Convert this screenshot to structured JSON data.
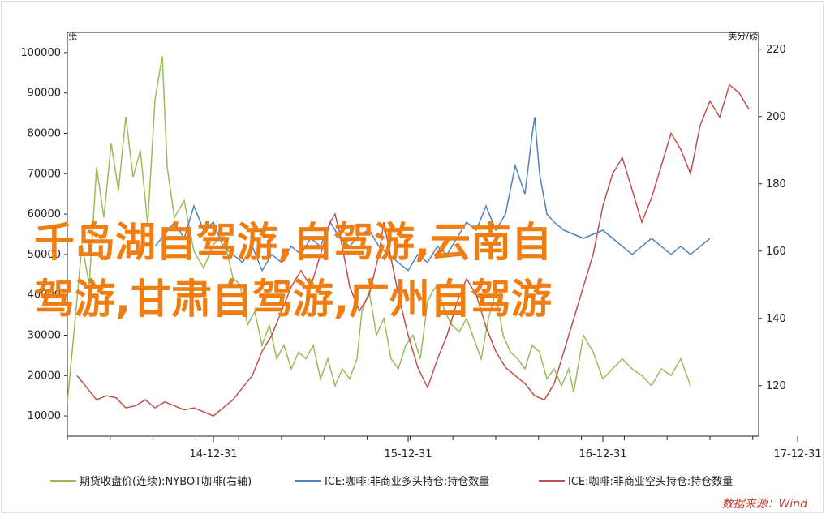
{
  "chart_data": {
    "type": "line",
    "title": "",
    "left_axis_unit": "张",
    "right_axis_unit": "美分/磅",
    "ylim_left": [
      5000,
      105000
    ],
    "ylim_right": [
      105,
      225
    ],
    "y_ticks_left": [
      "100000",
      "90000",
      "80000",
      "70000",
      "60000",
      "50000",
      "40000",
      "30000",
      "20000",
      "10000"
    ],
    "y_ticks_right": [
      "220",
      "200",
      "180",
      "160",
      "140",
      "120"
    ],
    "x_ticks": [
      "14-12-31",
      "15-12-31",
      "16-12-31",
      "17-12-31"
    ],
    "series": [
      {
        "name": "期货收盘价(连续):NYBOT咖啡(右轴)",
        "axis": "right",
        "color": "#9bbb59",
        "points": [
          [
            0,
            115
          ],
          [
            0.15,
            138
          ],
          [
            0.3,
            162
          ],
          [
            0.45,
            150
          ],
          [
            0.6,
            185
          ],
          [
            0.75,
            170
          ],
          [
            0.9,
            192
          ],
          [
            1.05,
            178
          ],
          [
            1.2,
            200
          ],
          [
            1.35,
            182
          ],
          [
            1.5,
            190
          ],
          [
            1.65,
            168
          ],
          [
            1.8,
            205
          ],
          [
            1.95,
            218
          ],
          [
            2.05,
            185
          ],
          [
            2.2,
            170
          ],
          [
            2.4,
            175
          ],
          [
            2.6,
            160
          ],
          [
            2.8,
            155
          ],
          [
            3.0,
            162
          ],
          [
            3.2,
            165
          ],
          [
            3.4,
            152
          ],
          [
            3.55,
            150
          ],
          [
            3.7,
            138
          ],
          [
            3.85,
            142
          ],
          [
            4.0,
            132
          ],
          [
            4.15,
            138
          ],
          [
            4.3,
            128
          ],
          [
            4.45,
            132
          ],
          [
            4.6,
            125
          ],
          [
            4.75,
            130
          ],
          [
            4.9,
            128
          ],
          [
            5.05,
            132
          ],
          [
            5.2,
            122
          ],
          [
            5.35,
            128
          ],
          [
            5.5,
            120
          ],
          [
            5.65,
            125
          ],
          [
            5.8,
            122
          ],
          [
            5.95,
            128
          ],
          [
            6.05,
            142
          ],
          [
            6.2,
            148
          ],
          [
            6.35,
            135
          ],
          [
            6.5,
            140
          ],
          [
            6.65,
            128
          ],
          [
            6.8,
            125
          ],
          [
            6.95,
            132
          ],
          [
            7.1,
            135
          ],
          [
            7.25,
            128
          ],
          [
            7.4,
            145
          ],
          [
            7.5,
            148
          ],
          [
            7.6,
            150
          ],
          [
            7.75,
            142
          ],
          [
            7.9,
            138
          ],
          [
            8.05,
            136
          ],
          [
            8.2,
            140
          ],
          [
            8.35,
            134
          ],
          [
            8.5,
            128
          ],
          [
            8.65,
            140
          ],
          [
            8.8,
            148
          ],
          [
            8.95,
            135
          ],
          [
            9.1,
            130
          ],
          [
            9.25,
            128
          ],
          [
            9.4,
            125
          ],
          [
            9.55,
            132
          ],
          [
            9.7,
            130
          ],
          [
            9.85,
            122
          ],
          [
            10.0,
            125
          ],
          [
            10.15,
            120
          ],
          [
            10.3,
            125
          ],
          [
            10.4,
            118
          ],
          [
            10.6,
            135
          ],
          [
            10.8,
            130
          ],
          [
            11.0,
            122
          ],
          [
            11.2,
            125
          ],
          [
            11.4,
            128
          ],
          [
            11.6,
            125
          ],
          [
            11.8,
            123
          ],
          [
            12.0,
            120
          ],
          [
            12.2,
            125
          ],
          [
            12.4,
            123
          ],
          [
            12.6,
            128
          ],
          [
            12.8,
            120
          ]
        ]
      },
      {
        "name": "ICE:咖啡:非商业多头持仓:持仓数量",
        "axis": "left",
        "color": "#4f81bd",
        "points": [
          [
            1.8,
            52000
          ],
          [
            2.0,
            55000
          ],
          [
            2.2,
            58000
          ],
          [
            2.4,
            54000
          ],
          [
            2.6,
            62000
          ],
          [
            2.8,
            56000
          ],
          [
            3.0,
            58000
          ],
          [
            3.2,
            52000
          ],
          [
            3.4,
            50000
          ],
          [
            3.6,
            48000
          ],
          [
            3.8,
            52000
          ],
          [
            4.0,
            46000
          ],
          [
            4.2,
            50000
          ],
          [
            4.4,
            48000
          ],
          [
            4.6,
            52000
          ],
          [
            4.8,
            50000
          ],
          [
            5.0,
            54000
          ],
          [
            5.2,
            52000
          ],
          [
            5.4,
            58000
          ],
          [
            5.6,
            54000
          ],
          [
            5.8,
            52000
          ],
          [
            6.0,
            55000
          ],
          [
            6.2,
            56000
          ],
          [
            6.4,
            52000
          ],
          [
            6.6,
            50000
          ],
          [
            6.8,
            48000
          ],
          [
            7.0,
            46000
          ],
          [
            7.2,
            50000
          ],
          [
            7.4,
            48000
          ],
          [
            7.6,
            52000
          ],
          [
            7.8,
            50000
          ],
          [
            8.0,
            54000
          ],
          [
            8.2,
            58000
          ],
          [
            8.4,
            56000
          ],
          [
            8.6,
            62000
          ],
          [
            8.8,
            56000
          ],
          [
            9.0,
            60000
          ],
          [
            9.2,
            72000
          ],
          [
            9.4,
            65000
          ],
          [
            9.55,
            80000
          ],
          [
            9.6,
            84000
          ],
          [
            9.7,
            70000
          ],
          [
            9.85,
            60000
          ],
          [
            10.0,
            58000
          ],
          [
            10.2,
            56000
          ],
          [
            10.4,
            55000
          ],
          [
            10.6,
            54000
          ],
          [
            10.8,
            55000
          ],
          [
            11.0,
            56000
          ],
          [
            11.2,
            54000
          ],
          [
            11.4,
            52000
          ],
          [
            11.6,
            50000
          ],
          [
            11.8,
            52000
          ],
          [
            12.0,
            54000
          ],
          [
            12.2,
            52000
          ],
          [
            12.4,
            50000
          ],
          [
            12.6,
            52000
          ],
          [
            12.8,
            50000
          ],
          [
            13.0,
            52000
          ],
          [
            13.2,
            54000
          ]
        ]
      },
      {
        "name": "ICE:咖啡:非商业空头持仓:持仓数量",
        "axis": "left",
        "color": "#c0504d",
        "points": [
          [
            0.2,
            20000
          ],
          [
            0.4,
            17000
          ],
          [
            0.6,
            14000
          ],
          [
            0.8,
            15000
          ],
          [
            1.0,
            14500
          ],
          [
            1.2,
            12000
          ],
          [
            1.4,
            12500
          ],
          [
            1.6,
            14000
          ],
          [
            1.8,
            12000
          ],
          [
            2.0,
            13500
          ],
          [
            2.2,
            12500
          ],
          [
            2.4,
            11500
          ],
          [
            2.6,
            12000
          ],
          [
            2.8,
            11000
          ],
          [
            3.0,
            10000
          ],
          [
            3.2,
            12000
          ],
          [
            3.4,
            14000
          ],
          [
            3.6,
            17000
          ],
          [
            3.8,
            20000
          ],
          [
            4.0,
            26000
          ],
          [
            4.2,
            30000
          ],
          [
            4.4,
            36000
          ],
          [
            4.6,
            42000
          ],
          [
            4.8,
            46000
          ],
          [
            5.0,
            42000
          ],
          [
            5.2,
            50000
          ],
          [
            5.4,
            58000
          ],
          [
            5.5,
            60000
          ],
          [
            5.6,
            55000
          ],
          [
            5.8,
            42000
          ],
          [
            6.0,
            36000
          ],
          [
            6.2,
            40000
          ],
          [
            6.4,
            50000
          ],
          [
            6.5,
            58000
          ],
          [
            6.6,
            52000
          ],
          [
            6.8,
            40000
          ],
          [
            7.0,
            30000
          ],
          [
            7.2,
            22000
          ],
          [
            7.4,
            17000
          ],
          [
            7.6,
            24000
          ],
          [
            7.8,
            30000
          ],
          [
            8.0,
            38000
          ],
          [
            8.2,
            44000
          ],
          [
            8.4,
            40000
          ],
          [
            8.6,
            32000
          ],
          [
            8.8,
            26000
          ],
          [
            9.0,
            22000
          ],
          [
            9.2,
            20000
          ],
          [
            9.4,
            18000
          ],
          [
            9.6,
            15000
          ],
          [
            9.8,
            14000
          ],
          [
            10.0,
            18000
          ],
          [
            10.2,
            26000
          ],
          [
            10.4,
            34000
          ],
          [
            10.6,
            42000
          ],
          [
            10.8,
            50000
          ],
          [
            11.0,
            62000
          ],
          [
            11.2,
            70000
          ],
          [
            11.4,
            74000
          ],
          [
            11.6,
            66000
          ],
          [
            11.8,
            58000
          ],
          [
            12.0,
            64000
          ],
          [
            12.2,
            72000
          ],
          [
            12.4,
            80000
          ],
          [
            12.6,
            76000
          ],
          [
            12.8,
            70000
          ],
          [
            13.0,
            82000
          ],
          [
            13.2,
            88000
          ],
          [
            13.4,
            84000
          ],
          [
            13.6,
            92000
          ],
          [
            13.8,
            90000
          ],
          [
            14.0,
            86000
          ]
        ]
      }
    ],
    "overlay_text": [
      "千岛湖自驾游,自驾游,云南自",
      "驾游,甘肃自驾游,广州自驾游"
    ],
    "source": "数据来源：Wind"
  }
}
